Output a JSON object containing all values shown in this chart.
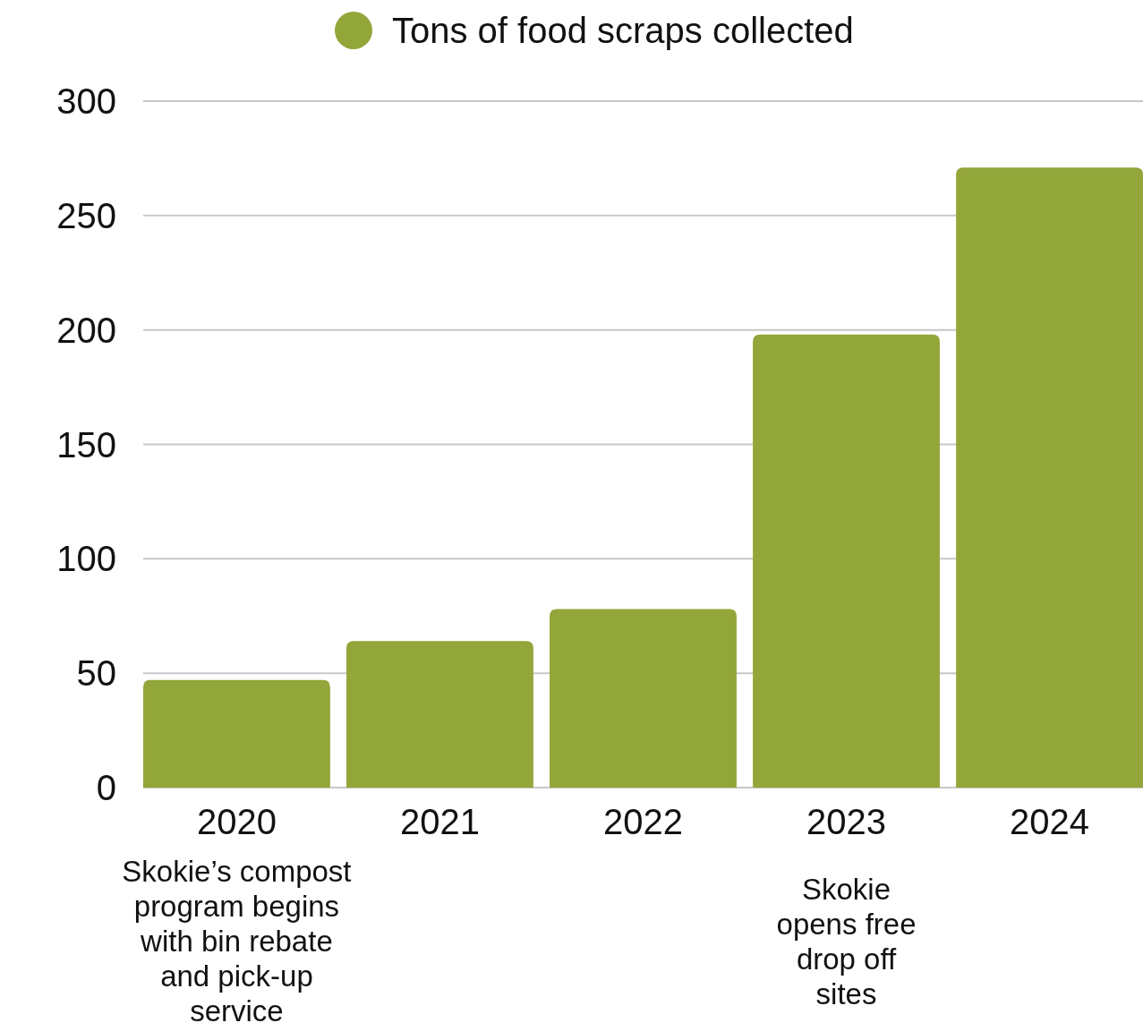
{
  "chart_data": {
    "type": "bar",
    "categories": [
      "2020",
      "2021",
      "2022",
      "2023",
      "2024"
    ],
    "series": [
      {
        "name": "Tons of food scraps collected",
        "color": "#93a63a",
        "values": [
          47,
          64,
          78,
          198,
          271
        ]
      }
    ],
    "ylim": [
      0,
      300
    ],
    "yticks": [
      0,
      50,
      100,
      150,
      200,
      250,
      300
    ],
    "grid": "y",
    "legend": "top",
    "annotations": [
      "Skokie’s compost\nprogram begins\nwith bin rebate\nand pick-up\nservice",
      "Skokie\nopens free\ndrop off\nsites"
    ]
  }
}
